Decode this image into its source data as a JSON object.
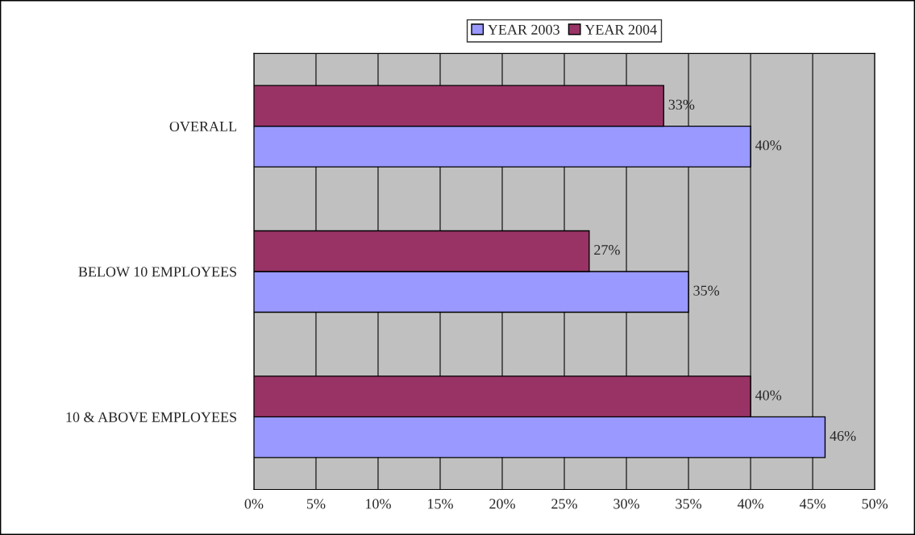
{
  "chart_data": {
    "type": "bar",
    "orientation": "horizontal",
    "categories": [
      "OVERALL",
      "BELOW 10 EMPLOYEES",
      "10 & ABOVE EMPLOYEES"
    ],
    "series": [
      {
        "name": "YEAR 2003",
        "color": "#9999ff",
        "values": [
          40,
          35,
          46
        ],
        "value_labels": [
          "40%",
          "35%",
          "46%"
        ]
      },
      {
        "name": "YEAR 2004",
        "color": "#993366",
        "values": [
          33,
          27,
          40
        ],
        "value_labels": [
          "33%",
          "27%",
          "40%"
        ]
      }
    ],
    "xlim": [
      0,
      50
    ],
    "xticks": [
      {
        "value": 0,
        "label": "0%"
      },
      {
        "value": 5,
        "label": "5%"
      },
      {
        "value": 10,
        "label": "10%"
      },
      {
        "value": 15,
        "label": "15%"
      },
      {
        "value": 20,
        "label": "20%"
      },
      {
        "value": 25,
        "label": "25%"
      },
      {
        "value": 30,
        "label": "30%"
      },
      {
        "value": 35,
        "label": "35%"
      },
      {
        "value": 40,
        "label": "40%"
      },
      {
        "value": 45,
        "label": "45%"
      },
      {
        "value": 50,
        "label": "50%"
      }
    ],
    "grid": "x",
    "legend": "top"
  }
}
